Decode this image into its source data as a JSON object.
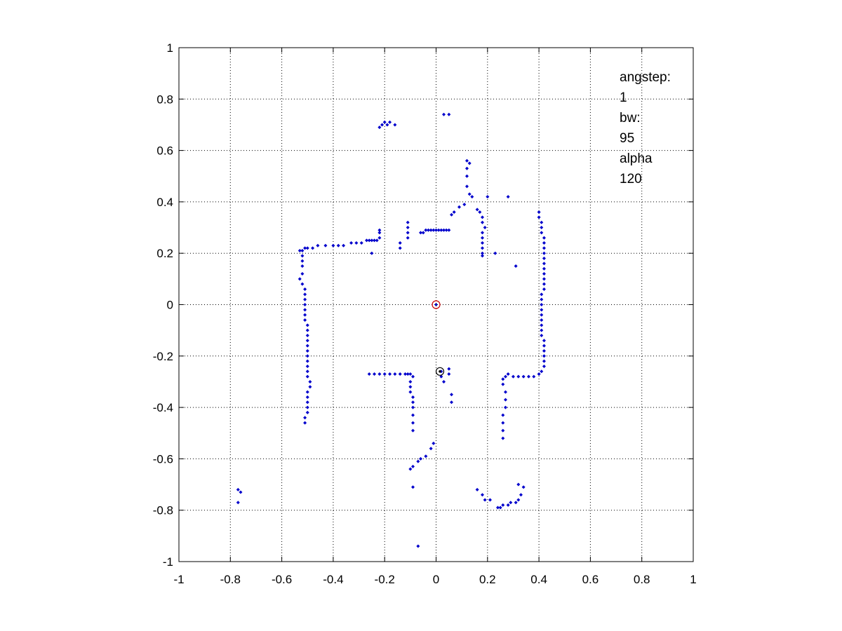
{
  "chart_data": {
    "type": "scatter",
    "title": "",
    "xlabel": "",
    "ylabel": "",
    "xlim": [
      -1,
      1
    ],
    "ylim": [
      -1,
      1
    ],
    "grid": true,
    "x_ticks": [
      -1,
      -0.8,
      -0.6,
      -0.4,
      -0.2,
      0,
      0.2,
      0.4,
      0.6,
      0.8,
      1
    ],
    "y_ticks": [
      -1,
      -0.8,
      -0.6,
      -0.4,
      -0.2,
      0,
      0.2,
      0.4,
      0.6,
      0.8,
      1
    ],
    "x_tick_labels": [
      "-1",
      "-0.8",
      "-0.6",
      "-0.4",
      "-0.2",
      "0",
      "0.2",
      "0.4",
      "0.6",
      "0.8",
      "1"
    ],
    "y_tick_labels": [
      "-1",
      "-0.8",
      "-0.6",
      "-0.4",
      "-0.2",
      "0",
      "0.2",
      "0.4",
      "0.6",
      "0.8",
      "1"
    ],
    "annotation": [
      "angstep:",
      "1",
      "bw:",
      "95",
      "alpha",
      "120"
    ],
    "series": [
      {
        "color": "#0000cc",
        "marker": "dot",
        "points": [
          [
            -0.22,
            0.69
          ],
          [
            -0.21,
            0.7
          ],
          [
            -0.2,
            0.71
          ],
          [
            -0.19,
            0.7
          ],
          [
            -0.18,
            0.71
          ],
          [
            -0.16,
            0.7
          ],
          [
            0.03,
            0.74
          ],
          [
            0.05,
            0.74
          ],
          [
            0.12,
            0.56
          ],
          [
            0.13,
            0.55
          ],
          [
            0.12,
            0.53
          ],
          [
            0.12,
            0.5
          ],
          [
            0.12,
            0.46
          ],
          [
            0.13,
            0.43
          ],
          [
            0.14,
            0.42
          ],
          [
            0.2,
            0.42
          ],
          [
            0.28,
            0.42
          ],
          [
            -0.53,
            0.21
          ],
          [
            -0.52,
            0.21
          ],
          [
            -0.51,
            0.22
          ],
          [
            -0.5,
            0.22
          ],
          [
            -0.48,
            0.22
          ],
          [
            -0.46,
            0.23
          ],
          [
            -0.43,
            0.23
          ],
          [
            -0.4,
            0.23
          ],
          [
            -0.38,
            0.23
          ],
          [
            -0.36,
            0.23
          ],
          [
            -0.33,
            0.24
          ],
          [
            -0.31,
            0.24
          ],
          [
            -0.29,
            0.24
          ],
          [
            -0.27,
            0.25
          ],
          [
            -0.26,
            0.25
          ],
          [
            -0.25,
            0.25
          ],
          [
            -0.24,
            0.25
          ],
          [
            -0.23,
            0.25
          ],
          [
            -0.22,
            0.26
          ],
          [
            -0.22,
            0.28
          ],
          [
            -0.22,
            0.29
          ],
          [
            -0.25,
            0.2
          ],
          [
            -0.14,
            0.24
          ],
          [
            -0.14,
            0.22
          ],
          [
            -0.11,
            0.32
          ],
          [
            -0.11,
            0.3
          ],
          [
            -0.11,
            0.28
          ],
          [
            -0.11,
            0.26
          ],
          [
            -0.06,
            0.28
          ],
          [
            -0.05,
            0.28
          ],
          [
            -0.04,
            0.29
          ],
          [
            -0.03,
            0.29
          ],
          [
            -0.02,
            0.29
          ],
          [
            -0.01,
            0.29
          ],
          [
            0.0,
            0.29
          ],
          [
            0.01,
            0.29
          ],
          [
            0.02,
            0.29
          ],
          [
            0.03,
            0.29
          ],
          [
            0.04,
            0.29
          ],
          [
            0.05,
            0.29
          ],
          [
            0.06,
            0.35
          ],
          [
            0.07,
            0.36
          ],
          [
            0.09,
            0.38
          ],
          [
            0.11,
            0.39
          ],
          [
            0.16,
            0.37
          ],
          [
            0.17,
            0.36
          ],
          [
            0.18,
            0.34
          ],
          [
            0.18,
            0.32
          ],
          [
            0.19,
            0.3
          ],
          [
            0.18,
            0.28
          ],
          [
            0.18,
            0.26
          ],
          [
            0.18,
            0.24
          ],
          [
            0.18,
            0.22
          ],
          [
            0.18,
            0.2
          ],
          [
            0.18,
            0.19
          ],
          [
            0.23,
            0.2
          ],
          [
            0.31,
            0.15
          ],
          [
            -0.52,
            0.19
          ],
          [
            -0.52,
            0.17
          ],
          [
            -0.52,
            0.15
          ],
          [
            -0.52,
            0.12
          ],
          [
            -0.53,
            0.1
          ],
          [
            -0.52,
            0.08
          ],
          [
            -0.51,
            0.06
          ],
          [
            -0.51,
            0.04
          ],
          [
            -0.51,
            0.02
          ],
          [
            -0.51,
            0.0
          ],
          [
            -0.51,
            -0.02
          ],
          [
            -0.51,
            -0.04
          ],
          [
            -0.51,
            -0.06
          ],
          [
            -0.5,
            -0.08
          ],
          [
            -0.5,
            -0.1
          ],
          [
            -0.5,
            -0.12
          ],
          [
            -0.5,
            -0.14
          ],
          [
            -0.5,
            -0.16
          ],
          [
            -0.5,
            -0.18
          ],
          [
            -0.5,
            -0.2
          ],
          [
            -0.5,
            -0.22
          ],
          [
            -0.5,
            -0.24
          ],
          [
            -0.5,
            -0.26
          ],
          [
            -0.5,
            -0.28
          ],
          [
            -0.49,
            -0.3
          ],
          [
            -0.49,
            -0.32
          ],
          [
            -0.5,
            -0.34
          ],
          [
            -0.5,
            -0.36
          ],
          [
            -0.5,
            -0.38
          ],
          [
            -0.5,
            -0.4
          ],
          [
            -0.5,
            -0.42
          ],
          [
            -0.51,
            -0.44
          ],
          [
            -0.51,
            -0.46
          ],
          [
            0.4,
            0.36
          ],
          [
            0.4,
            0.34
          ],
          [
            0.41,
            0.32
          ],
          [
            0.41,
            0.3
          ],
          [
            0.41,
            0.28
          ],
          [
            0.42,
            0.26
          ],
          [
            0.42,
            0.24
          ],
          [
            0.42,
            0.22
          ],
          [
            0.42,
            0.2
          ],
          [
            0.42,
            0.18
          ],
          [
            0.42,
            0.16
          ],
          [
            0.42,
            0.14
          ],
          [
            0.42,
            0.12
          ],
          [
            0.42,
            0.1
          ],
          [
            0.42,
            0.08
          ],
          [
            0.42,
            0.06
          ],
          [
            0.41,
            0.04
          ],
          [
            0.41,
            0.02
          ],
          [
            0.41,
            0.0
          ],
          [
            0.41,
            -0.02
          ],
          [
            0.41,
            -0.04
          ],
          [
            0.41,
            -0.06
          ],
          [
            0.41,
            -0.08
          ],
          [
            0.41,
            -0.1
          ],
          [
            0.41,
            -0.12
          ],
          [
            0.42,
            -0.14
          ],
          [
            0.42,
            -0.16
          ],
          [
            0.42,
            -0.18
          ],
          [
            0.42,
            -0.2
          ],
          [
            0.42,
            -0.22
          ],
          [
            0.42,
            -0.24
          ],
          [
            0.41,
            -0.26
          ],
          [
            0.4,
            -0.27
          ],
          [
            -0.26,
            -0.27
          ],
          [
            -0.24,
            -0.27
          ],
          [
            -0.22,
            -0.27
          ],
          [
            -0.2,
            -0.27
          ],
          [
            -0.18,
            -0.27
          ],
          [
            -0.16,
            -0.27
          ],
          [
            -0.14,
            -0.27
          ],
          [
            -0.12,
            -0.27
          ],
          [
            -0.11,
            -0.27
          ],
          [
            -0.1,
            -0.27
          ],
          [
            -0.09,
            -0.28
          ],
          [
            -0.1,
            -0.3
          ],
          [
            -0.1,
            -0.32
          ],
          [
            -0.1,
            -0.34
          ],
          [
            -0.09,
            -0.36
          ],
          [
            -0.09,
            -0.38
          ],
          [
            -0.09,
            -0.4
          ],
          [
            -0.09,
            -0.43
          ],
          [
            -0.09,
            -0.46
          ],
          [
            -0.09,
            -0.49
          ],
          [
            -0.1,
            -0.64
          ],
          [
            -0.09,
            -0.63
          ],
          [
            -0.07,
            -0.61
          ],
          [
            -0.06,
            -0.6
          ],
          [
            -0.04,
            -0.59
          ],
          [
            -0.02,
            -0.56
          ],
          [
            -0.01,
            -0.54
          ],
          [
            -0.09,
            -0.71
          ],
          [
            -0.07,
            -0.94
          ],
          [
            0.02,
            -0.26
          ],
          [
            0.02,
            -0.28
          ],
          [
            0.03,
            -0.3
          ],
          [
            0.05,
            -0.25
          ],
          [
            0.05,
            -0.27
          ],
          [
            0.06,
            -0.35
          ],
          [
            0.06,
            -0.38
          ],
          [
            0.26,
            -0.52
          ],
          [
            0.26,
            -0.49
          ],
          [
            0.26,
            -0.46
          ],
          [
            0.26,
            -0.43
          ],
          [
            0.27,
            -0.4
          ],
          [
            0.27,
            -0.37
          ],
          [
            0.27,
            -0.34
          ],
          [
            0.26,
            -0.31
          ],
          [
            0.26,
            -0.29
          ],
          [
            0.27,
            -0.28
          ],
          [
            0.28,
            -0.27
          ],
          [
            0.3,
            -0.28
          ],
          [
            0.32,
            -0.28
          ],
          [
            0.34,
            -0.28
          ],
          [
            0.36,
            -0.28
          ],
          [
            0.38,
            -0.28
          ],
          [
            0.16,
            -0.72
          ],
          [
            0.18,
            -0.74
          ],
          [
            0.19,
            -0.76
          ],
          [
            0.21,
            -0.76
          ],
          [
            0.24,
            -0.79
          ],
          [
            0.25,
            -0.79
          ],
          [
            0.26,
            -0.78
          ],
          [
            0.28,
            -0.78
          ],
          [
            0.29,
            -0.77
          ],
          [
            0.31,
            -0.77
          ],
          [
            0.32,
            -0.76
          ],
          [
            0.33,
            -0.74
          ],
          [
            0.34,
            -0.71
          ],
          [
            0.32,
            -0.7
          ],
          [
            -0.77,
            -0.72
          ],
          [
            -0.76,
            -0.73
          ],
          [
            -0.77,
            -0.77
          ]
        ]
      }
    ],
    "special_markers": [
      {
        "x": 0.0,
        "y": 0.0,
        "ring_color": "#cc0000",
        "dot_color": "#0000cc"
      },
      {
        "x": 0.015,
        "y": -0.26,
        "ring_color": "#000000",
        "dot_color": "#000000"
      }
    ]
  }
}
